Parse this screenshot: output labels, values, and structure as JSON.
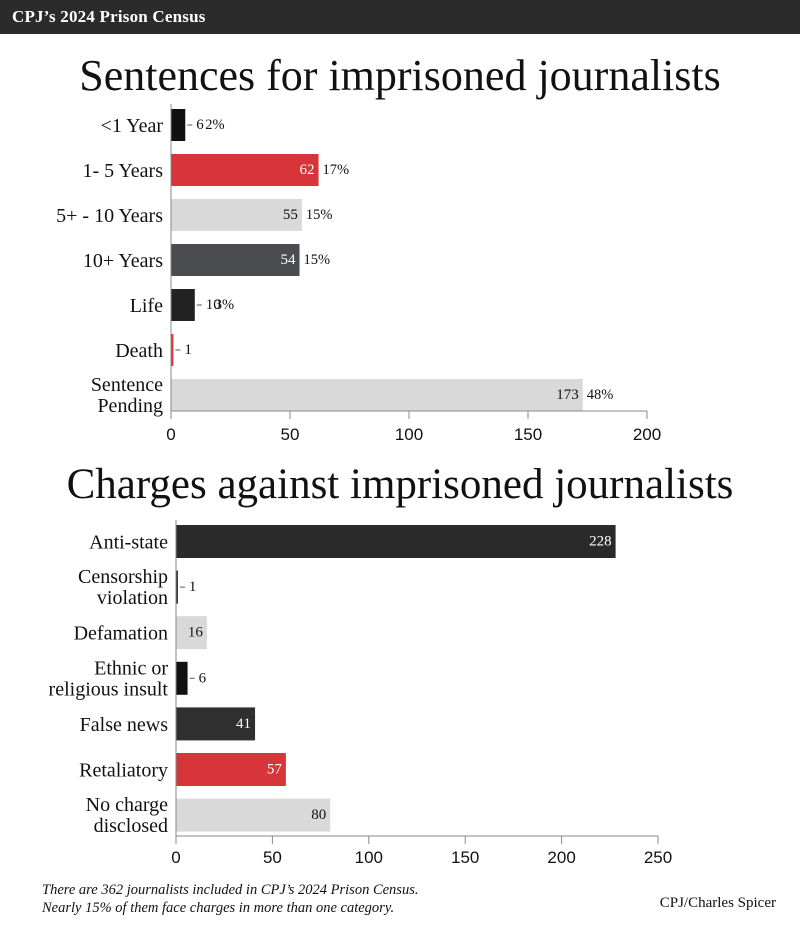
{
  "header": {
    "title": "CPJ’s 2024 Prison Census"
  },
  "chart_data": [
    {
      "type": "bar",
      "orientation": "horizontal",
      "title": "Sentences for imprisoned journalists",
      "categories": [
        "<1 Year",
        "1- 5 Years",
        "5+ - 10 Years",
        "10+ Years",
        "Life",
        "Death",
        "Sentence Pending"
      ],
      "category_lines": [
        [
          "<1 Year"
        ],
        [
          "1- 5 Years"
        ],
        [
          "5+ - 10 Years"
        ],
        [
          "10+ Years"
        ],
        [
          "Life"
        ],
        [
          "Death"
        ],
        [
          "Sentence",
          "Pending"
        ]
      ],
      "values": [
        6,
        62,
        55,
        54,
        10,
        1,
        173
      ],
      "percent_labels": [
        "2%",
        "17%",
        "15%",
        "15%",
        "3%",
        "",
        "48%"
      ],
      "colors": [
        "#111111",
        "#d6363a",
        "#d9d9d9",
        "#4a4c4f",
        "#222222",
        "#d6363a",
        "#d9d9d9"
      ],
      "xlim": [
        0,
        200
      ],
      "xticks": [
        0,
        50,
        100,
        150,
        200
      ],
      "grid": false,
      "legend": "none"
    },
    {
      "type": "bar",
      "orientation": "horizontal",
      "title": "Charges against imprisoned journalists",
      "categories": [
        "Anti-state",
        "Censorship violation",
        "Defamation",
        "Ethnic or religious insult",
        "False news",
        "Retaliatory",
        "No charge disclosed"
      ],
      "category_lines": [
        [
          "Anti-state"
        ],
        [
          "Censorship",
          "violation"
        ],
        [
          "Defamation"
        ],
        [
          "Ethnic or",
          "religious insult"
        ],
        [
          "False news"
        ],
        [
          "Retaliatory"
        ],
        [
          "No charge",
          "disclosed"
        ]
      ],
      "values": [
        228,
        1,
        16,
        6,
        41,
        57,
        80
      ],
      "colors": [
        "#2a2a2a",
        "#2a2a2a",
        "#d9d9d9",
        "#111111",
        "#2f2f2f",
        "#d6363a",
        "#d9d9d9"
      ],
      "xlim": [
        0,
        250
      ],
      "xticks": [
        0,
        50,
        100,
        150,
        200,
        250
      ],
      "grid": false,
      "legend": "none"
    }
  ],
  "footnote": {
    "line1": "There are 362 journalists included in CPJ’s 2024 Prison Census.",
    "line2": "Nearly 15% of them face charges in more than one category."
  },
  "credit": "CPJ/Charles Spicer"
}
